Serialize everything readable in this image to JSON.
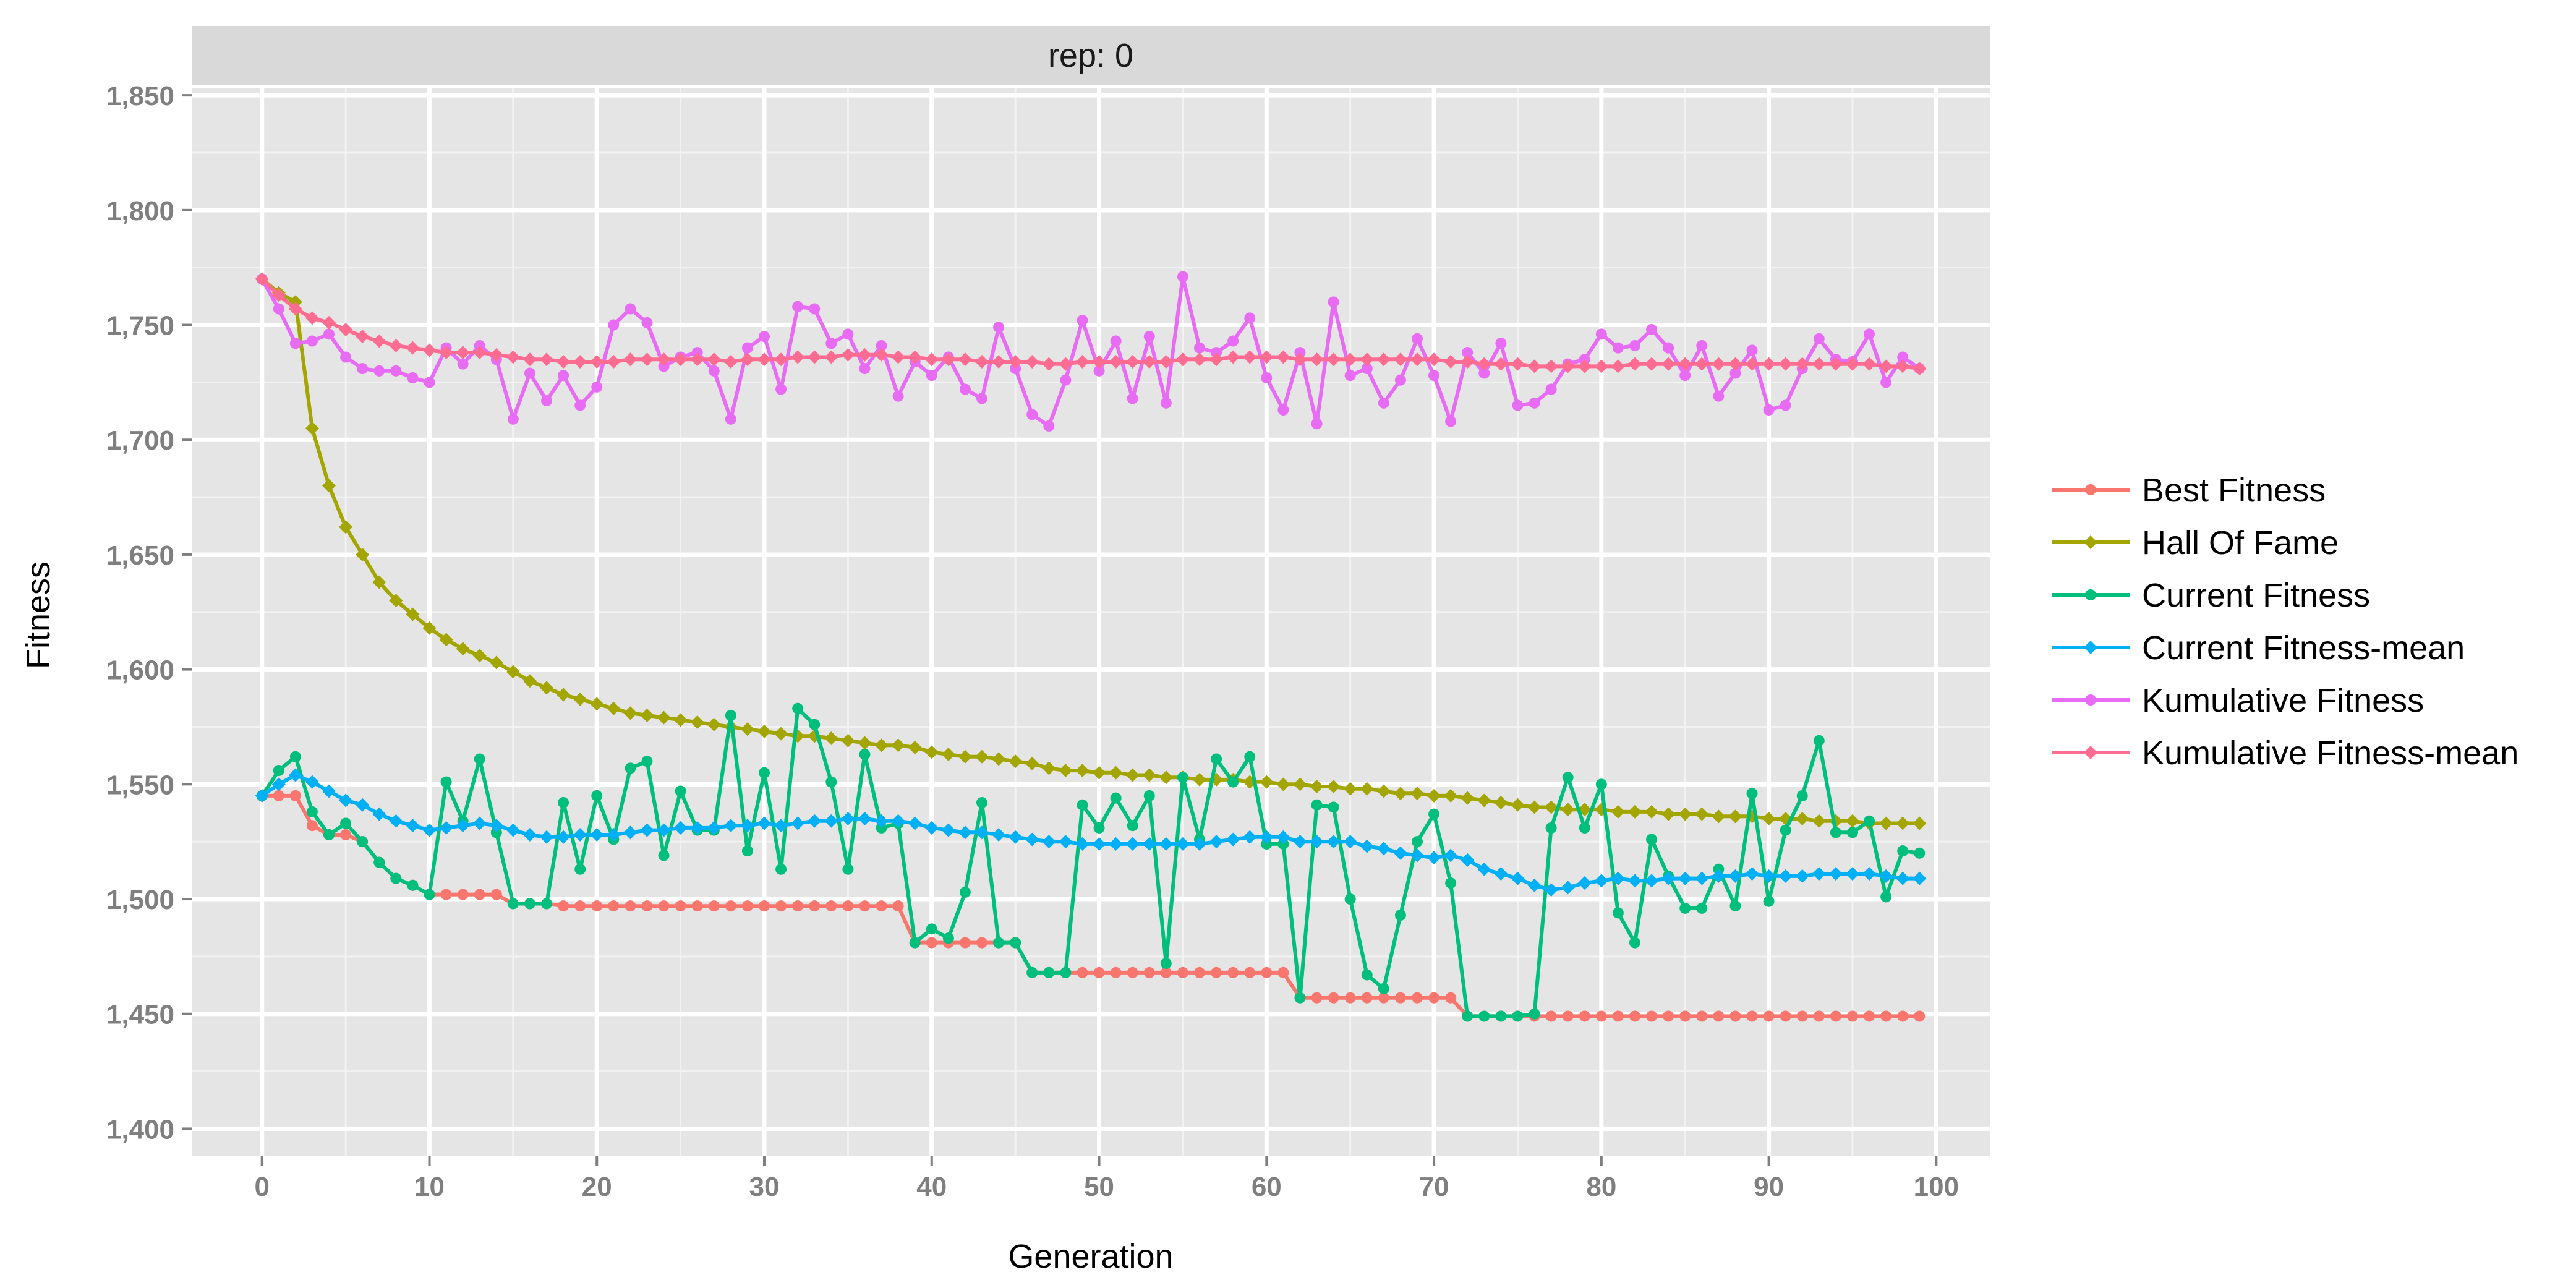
{
  "chart_data": {
    "type": "line",
    "facet_label": "rep: 0",
    "xlabel": "Generation",
    "ylabel": "Fitness",
    "xlim": [
      -4.2,
      103.2
    ],
    "ylim": [
      1388,
      1853
    ],
    "x_ticks": [
      0,
      10,
      20,
      30,
      40,
      50,
      60,
      70,
      80,
      90,
      100
    ],
    "x_tick_labels": [
      "0",
      "10",
      "20",
      "30",
      "40",
      "50",
      "60",
      "70",
      "80",
      "90",
      "100"
    ],
    "y_ticks": [
      1400,
      1450,
      1500,
      1550,
      1600,
      1650,
      1700,
      1750,
      1800,
      1850
    ],
    "y_tick_labels": [
      "1,400",
      "1,450",
      "1,500",
      "1,550",
      "1,600",
      "1,650",
      "1,700",
      "1,750",
      "1,800",
      "1,850"
    ],
    "grid": true,
    "legend_position": "right",
    "series": [
      {
        "name": "Best Fitness",
        "color": "#F8766D",
        "marker": "circle",
        "x": [
          0,
          1,
          2,
          3,
          4,
          5,
          6,
          7,
          8,
          9,
          10,
          11,
          12,
          13,
          14,
          15,
          16,
          17,
          18,
          19,
          20,
          21,
          22,
          23,
          24,
          25,
          26,
          27,
          28,
          29,
          30,
          31,
          32,
          33,
          34,
          35,
          36,
          37,
          38,
          39,
          40,
          41,
          42,
          43,
          44,
          45,
          46,
          47,
          48,
          49,
          50,
          51,
          52,
          53,
          54,
          55,
          56,
          57,
          58,
          59,
          60,
          61,
          62,
          63,
          64,
          65,
          66,
          67,
          68,
          69,
          70,
          71,
          72,
          73,
          74,
          75,
          76,
          77,
          78,
          79,
          80,
          81,
          82,
          83,
          84,
          85,
          86,
          87,
          88,
          89,
          90,
          91,
          92,
          93,
          94,
          95,
          96,
          97,
          98,
          99
        ],
        "values": [
          1545,
          1545,
          1545,
          1532,
          1528,
          1528,
          1525,
          1516,
          1509,
          1506,
          1502,
          1502,
          1502,
          1502,
          1502,
          1498,
          1498,
          1498,
          1497,
          1497,
          1497,
          1497,
          1497,
          1497,
          1497,
          1497,
          1497,
          1497,
          1497,
          1497,
          1497,
          1497,
          1497,
          1497,
          1497,
          1497,
          1497,
          1497,
          1497,
          1481,
          1481,
          1481,
          1481,
          1481,
          1481,
          1481,
          1468,
          1468,
          1468,
          1468,
          1468,
          1468,
          1468,
          1468,
          1468,
          1468,
          1468,
          1468,
          1468,
          1468,
          1468,
          1468,
          1457,
          1457,
          1457,
          1457,
          1457,
          1457,
          1457,
          1457,
          1457,
          1457,
          1449,
          1449,
          1449,
          1449,
          1449,
          1449,
          1449,
          1449,
          1449,
          1449,
          1449,
          1449,
          1449,
          1449,
          1449,
          1449,
          1449,
          1449,
          1449,
          1449,
          1449,
          1449,
          1449,
          1449,
          1449,
          1449,
          1449,
          1449
        ]
      },
      {
        "name": "Hall Of Fame",
        "color": "#A3A500",
        "marker": "diamond",
        "x": [
          0,
          1,
          2,
          3,
          4,
          5,
          6,
          7,
          8,
          9,
          10,
          11,
          12,
          13,
          14,
          15,
          16,
          17,
          18,
          19,
          20,
          21,
          22,
          23,
          24,
          25,
          26,
          27,
          28,
          29,
          30,
          31,
          32,
          33,
          34,
          35,
          36,
          37,
          38,
          39,
          40,
          41,
          42,
          43,
          44,
          45,
          46,
          47,
          48,
          49,
          50,
          51,
          52,
          53,
          54,
          55,
          56,
          57,
          58,
          59,
          60,
          61,
          62,
          63,
          64,
          65,
          66,
          67,
          68,
          69,
          70,
          71,
          72,
          73,
          74,
          75,
          76,
          77,
          78,
          79,
          80,
          81,
          82,
          83,
          84,
          85,
          86,
          87,
          88,
          89,
          90,
          91,
          92,
          93,
          94,
          95,
          96,
          97,
          98,
          99
        ],
        "values": [
          1770,
          1764,
          1760,
          1705,
          1680,
          1662,
          1650,
          1638,
          1630,
          1624,
          1618,
          1613,
          1609,
          1606,
          1603,
          1599,
          1595,
          1592,
          1589,
          1587,
          1585,
          1583,
          1581,
          1580,
          1579,
          1578,
          1577,
          1576,
          1575,
          1574,
          1573,
          1572,
          1571,
          1571,
          1570,
          1569,
          1568,
          1567,
          1567,
          1566,
          1564,
          1563,
          1562,
          1562,
          1561,
          1560,
          1559,
          1557,
          1556,
          1556,
          1555,
          1555,
          1554,
          1554,
          1553,
          1553,
          1552,
          1552,
          1552,
          1551,
          1551,
          1550,
          1550,
          1549,
          1549,
          1548,
          1548,
          1547,
          1546,
          1546,
          1545,
          1545,
          1544,
          1543,
          1542,
          1541,
          1540,
          1540,
          1539,
          1539,
          1539,
          1538,
          1538,
          1538,
          1537,
          1537,
          1537,
          1536,
          1536,
          1536,
          1535,
          1535,
          1535,
          1534,
          1534,
          1534,
          1533,
          1533,
          1533,
          1533
        ]
      },
      {
        "name": "Current Fitness",
        "color": "#00BF7D",
        "marker": "circle",
        "x": [
          0,
          1,
          2,
          3,
          4,
          5,
          6,
          7,
          8,
          9,
          10,
          11,
          12,
          13,
          14,
          15,
          16,
          17,
          18,
          19,
          20,
          21,
          22,
          23,
          24,
          25,
          26,
          27,
          28,
          29,
          30,
          31,
          32,
          33,
          34,
          35,
          36,
          37,
          38,
          39,
          40,
          41,
          42,
          43,
          44,
          45,
          46,
          47,
          48,
          49,
          50,
          51,
          52,
          53,
          54,
          55,
          56,
          57,
          58,
          59,
          60,
          61,
          62,
          63,
          64,
          65,
          66,
          67,
          68,
          69,
          70,
          71,
          72,
          73,
          74,
          75,
          76,
          77,
          78,
          79,
          80,
          81,
          82,
          83,
          84,
          85,
          86,
          87,
          88,
          89,
          90,
          91,
          92,
          93,
          94,
          95,
          96,
          97,
          98,
          99
        ],
        "values": [
          1545,
          1556,
          1562,
          1538,
          1528,
          1533,
          1525,
          1516,
          1509,
          1506,
          1502,
          1551,
          1534,
          1561,
          1529,
          1498,
          1498,
          1498,
          1542,
          1513,
          1545,
          1526,
          1557,
          1560,
          1519,
          1547,
          1530,
          1530,
          1580,
          1521,
          1555,
          1513,
          1583,
          1576,
          1551,
          1513,
          1563,
          1531,
          1533,
          1481,
          1487,
          1483,
          1503,
          1542,
          1481,
          1481,
          1468,
          1468,
          1468,
          1541,
          1531,
          1544,
          1532,
          1545,
          1472,
          1553,
          1526,
          1561,
          1551,
          1562,
          1524,
          1524,
          1457,
          1541,
          1540,
          1500,
          1467,
          1461,
          1493,
          1525,
          1537,
          1507,
          1449,
          1449,
          1449,
          1449,
          1450,
          1531,
          1553,
          1531,
          1550,
          1494,
          1481,
          1526,
          1510,
          1496,
          1496,
          1513,
          1497,
          1546,
          1499,
          1530,
          1545,
          1569,
          1529,
          1529,
          1534,
          1501,
          1521,
          1520
        ]
      },
      {
        "name": "Current Fitness-mean",
        "color": "#00B0F6",
        "marker": "diamond",
        "x": [
          0,
          1,
          2,
          3,
          4,
          5,
          6,
          7,
          8,
          9,
          10,
          11,
          12,
          13,
          14,
          15,
          16,
          17,
          18,
          19,
          20,
          21,
          22,
          23,
          24,
          25,
          26,
          27,
          28,
          29,
          30,
          31,
          32,
          33,
          34,
          35,
          36,
          37,
          38,
          39,
          40,
          41,
          42,
          43,
          44,
          45,
          46,
          47,
          48,
          49,
          50,
          51,
          52,
          53,
          54,
          55,
          56,
          57,
          58,
          59,
          60,
          61,
          62,
          63,
          64,
          65,
          66,
          67,
          68,
          69,
          70,
          71,
          72,
          73,
          74,
          75,
          76,
          77,
          78,
          79,
          80,
          81,
          82,
          83,
          84,
          85,
          86,
          87,
          88,
          89,
          90,
          91,
          92,
          93,
          94,
          95,
          96,
          97,
          98,
          99
        ],
        "values": [
          1545,
          1550,
          1554,
          1551,
          1547,
          1543,
          1541,
          1537,
          1534,
          1532,
          1530,
          1531,
          1532,
          1533,
          1532,
          1530,
          1528,
          1527,
          1527,
          1528,
          1528,
          1528,
          1529,
          1530,
          1530,
          1531,
          1531,
          1531,
          1532,
          1532,
          1533,
          1532,
          1533,
          1534,
          1534,
          1535,
          1535,
          1534,
          1534,
          1533,
          1531,
          1530,
          1529,
          1529,
          1528,
          1527,
          1526,
          1525,
          1525,
          1524,
          1524,
          1524,
          1524,
          1524,
          1524,
          1524,
          1524,
          1525,
          1526,
          1527,
          1527,
          1527,
          1525,
          1525,
          1525,
          1525,
          1523,
          1522,
          1520,
          1519,
          1518,
          1519,
          1517,
          1513,
          1511,
          1509,
          1506,
          1504,
          1505,
          1507,
          1508,
          1509,
          1508,
          1508,
          1509,
          1509,
          1509,
          1510,
          1510,
          1511,
          1510,
          1510,
          1510,
          1511,
          1511,
          1511,
          1511,
          1510,
          1509,
          1509
        ]
      },
      {
        "name": "Kumulative Fitness",
        "color": "#E76BF3",
        "marker": "circle",
        "x": [
          0,
          1,
          2,
          3,
          4,
          5,
          6,
          7,
          8,
          9,
          10,
          11,
          12,
          13,
          14,
          15,
          16,
          17,
          18,
          19,
          20,
          21,
          22,
          23,
          24,
          25,
          26,
          27,
          28,
          29,
          30,
          31,
          32,
          33,
          34,
          35,
          36,
          37,
          38,
          39,
          40,
          41,
          42,
          43,
          44,
          45,
          46,
          47,
          48,
          49,
          50,
          51,
          52,
          53,
          54,
          55,
          56,
          57,
          58,
          59,
          60,
          61,
          62,
          63,
          64,
          65,
          66,
          67,
          68,
          69,
          70,
          71,
          72,
          73,
          74,
          75,
          76,
          77,
          78,
          79,
          80,
          81,
          82,
          83,
          84,
          85,
          86,
          87,
          88,
          89,
          90,
          91,
          92,
          93,
          94,
          95,
          96,
          97,
          98,
          99
        ],
        "values": [
          1770,
          1757,
          1742,
          1743,
          1746,
          1736,
          1731,
          1730,
          1730,
          1727,
          1725,
          1740,
          1733,
          1741,
          1735,
          1709,
          1729,
          1717,
          1728,
          1715,
          1723,
          1750,
          1757,
          1751,
          1732,
          1736,
          1738,
          1730,
          1709,
          1740,
          1745,
          1722,
          1758,
          1757,
          1742,
          1746,
          1731,
          1741,
          1719,
          1734,
          1728,
          1736,
          1722,
          1718,
          1749,
          1731,
          1711,
          1706,
          1726,
          1752,
          1730,
          1743,
          1718,
          1745,
          1716,
          1771,
          1740,
          1738,
          1743,
          1753,
          1727,
          1713,
          1738,
          1707,
          1760,
          1728,
          1731,
          1716,
          1726,
          1744,
          1728,
          1708,
          1738,
          1729,
          1742,
          1715,
          1716,
          1722,
          1733,
          1735,
          1746,
          1740,
          1741,
          1748,
          1740,
          1728,
          1741,
          1719,
          1729,
          1739,
          1713,
          1715,
          1731,
          1744,
          1735,
          1734,
          1746,
          1725,
          1736,
          1731
        ]
      },
      {
        "name": "Kumulative Fitness-mean",
        "color": "#FF6C91",
        "marker": "diamond",
        "x": [
          0,
          1,
          2,
          3,
          4,
          5,
          6,
          7,
          8,
          9,
          10,
          11,
          12,
          13,
          14,
          15,
          16,
          17,
          18,
          19,
          20,
          21,
          22,
          23,
          24,
          25,
          26,
          27,
          28,
          29,
          30,
          31,
          32,
          33,
          34,
          35,
          36,
          37,
          38,
          39,
          40,
          41,
          42,
          43,
          44,
          45,
          46,
          47,
          48,
          49,
          50,
          51,
          52,
          53,
          54,
          55,
          56,
          57,
          58,
          59,
          60,
          61,
          62,
          63,
          64,
          65,
          66,
          67,
          68,
          69,
          70,
          71,
          72,
          73,
          74,
          75,
          76,
          77,
          78,
          79,
          80,
          81,
          82,
          83,
          84,
          85,
          86,
          87,
          88,
          89,
          90,
          91,
          92,
          93,
          94,
          95,
          96,
          97,
          98,
          99
        ],
        "values": [
          1770,
          1763,
          1757,
          1753,
          1751,
          1748,
          1745,
          1743,
          1741,
          1740,
          1739,
          1738,
          1738,
          1738,
          1737,
          1736,
          1735,
          1735,
          1734,
          1734,
          1734,
          1734,
          1735,
          1735,
          1735,
          1735,
          1735,
          1735,
          1734,
          1735,
          1735,
          1735,
          1736,
          1736,
          1736,
          1737,
          1737,
          1737,
          1736,
          1736,
          1735,
          1735,
          1735,
          1734,
          1734,
          1734,
          1734,
          1733,
          1733,
          1734,
          1734,
          1734,
          1734,
          1734,
          1734,
          1735,
          1735,
          1735,
          1736,
          1736,
          1736,
          1736,
          1735,
          1735,
          1735,
          1735,
          1735,
          1735,
          1735,
          1735,
          1735,
          1734,
          1734,
          1733,
          1733,
          1733,
          1732,
          1732,
          1732,
          1732,
          1732,
          1732,
          1733,
          1733,
          1733,
          1733,
          1733,
          1733,
          1733,
          1733,
          1733,
          1733,
          1733,
          1733,
          1733,
          1733,
          1733,
          1732,
          1732,
          1731
        ]
      }
    ]
  }
}
